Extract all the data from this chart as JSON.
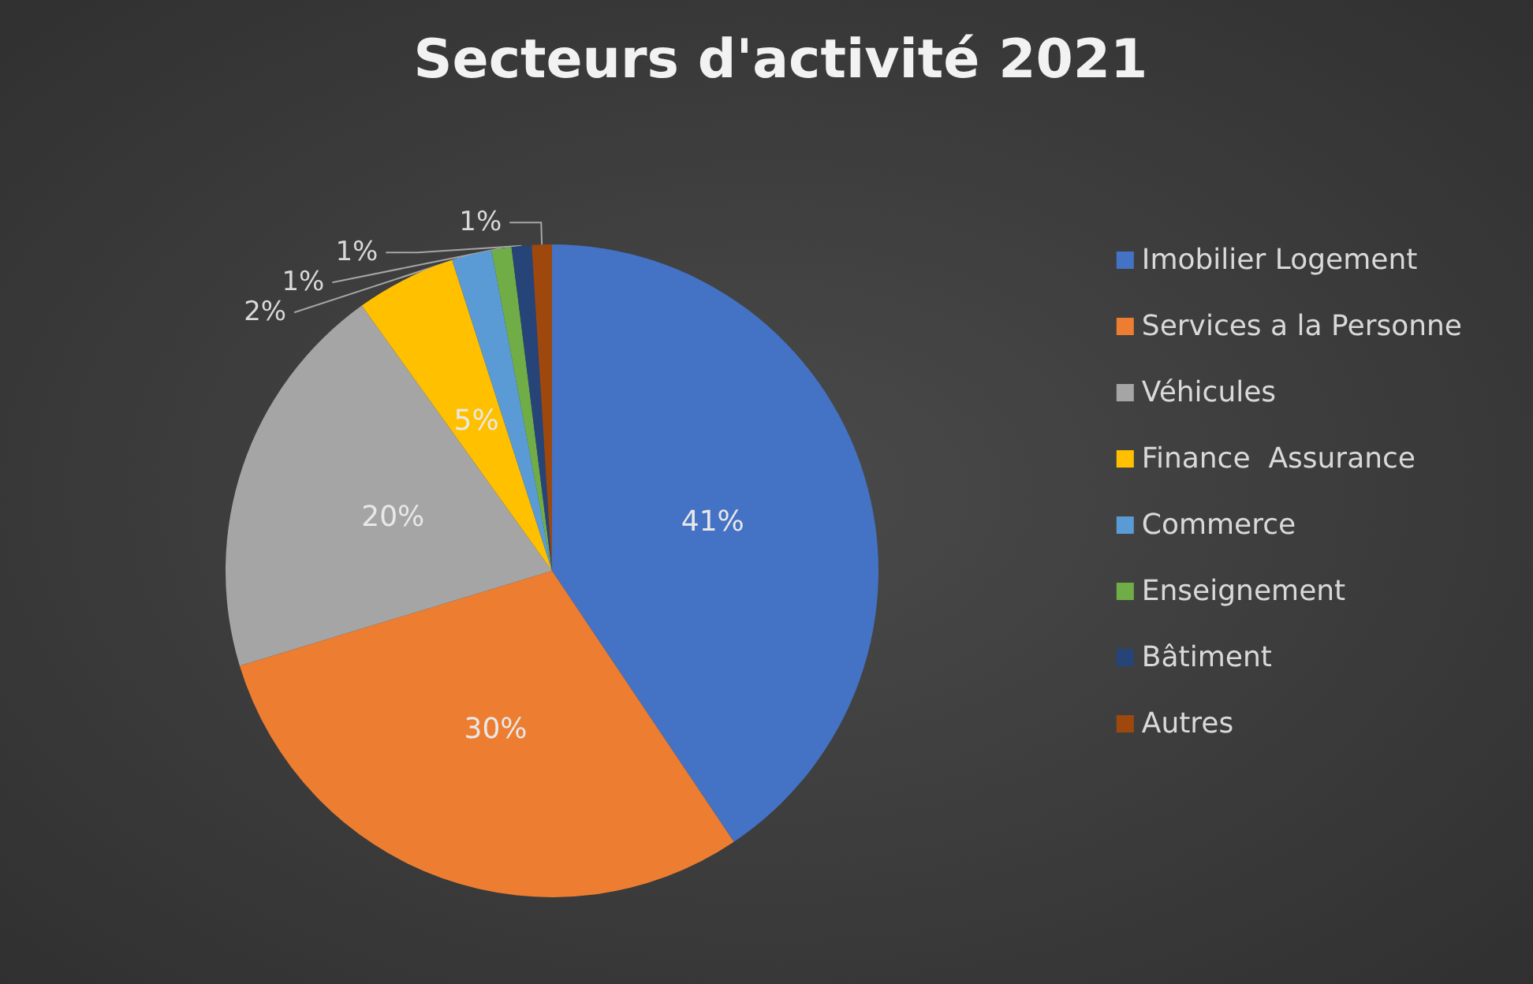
{
  "chart_data": {
    "type": "pie",
    "title": "Secteurs d'activité 2021",
    "categories": [
      "Imobilier Logement",
      "Services a la Personne",
      "Véhicules",
      "Finance  Assurance",
      "Commerce",
      "Enseignement",
      "Bâtiment",
      "Autres"
    ],
    "values": [
      41,
      30,
      20,
      5,
      2,
      1,
      1,
      1
    ],
    "colors": [
      "#4472c4",
      "#ed7d31",
      "#a5a5a5",
      "#ffc000",
      "#5b9bd5",
      "#70ad47",
      "#264478",
      "#9e480e"
    ],
    "value_labels": [
      "41%",
      "30%",
      "20%",
      "5%",
      "2%",
      "1%",
      "1%",
      "1%"
    ],
    "legend": "right"
  }
}
